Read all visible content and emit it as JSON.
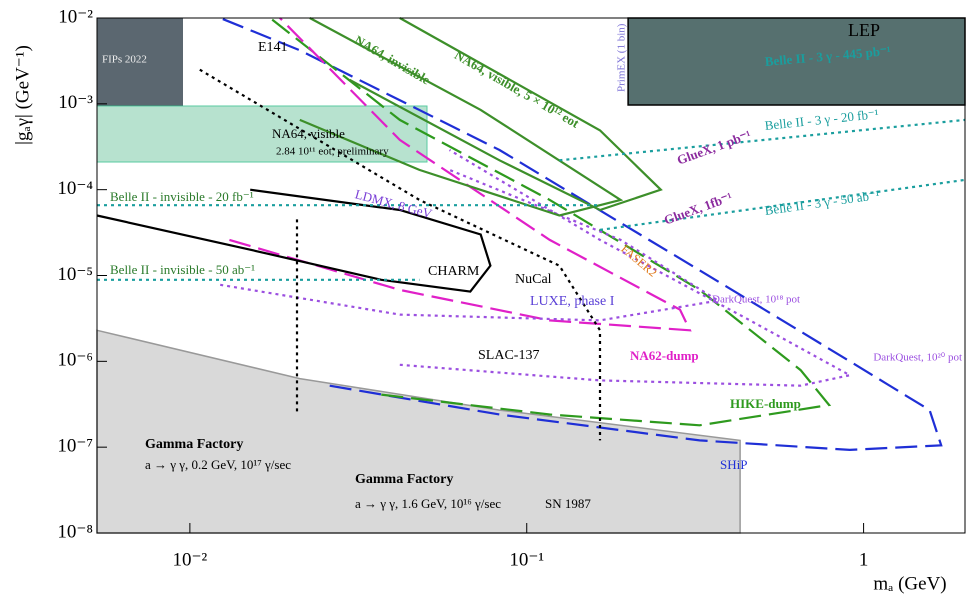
{
  "chart_data": {
    "type": "line",
    "x_label": "mₐ (GeV)",
    "y_label": "|gₐγ| (GeV⁻¹)",
    "x_log": true,
    "y_log": true,
    "grid": false,
    "xlim": [
      0.0053,
      2.0
    ],
    "ylim": [
      1e-08,
      0.01
    ],
    "xticks": [
      {
        "value": 0.01,
        "label": "10⁻²"
      },
      {
        "value": 0.1,
        "label": "10⁻¹"
      },
      1
    ],
    "yticks": [
      {
        "value": 1e-08,
        "label": "10⁻⁸"
      },
      {
        "value": 1e-07,
        "label": "10⁻⁷"
      },
      {
        "value": 1e-06,
        "label": "10⁻⁶"
      },
      {
        "value": 1e-05,
        "label": "10⁻⁵"
      },
      {
        "value": 0.0001,
        "label": "10⁻⁴"
      },
      {
        "value": 0.001,
        "label": "10⁻³"
      },
      {
        "value": 0.01,
        "label": "10⁻²"
      }
    ],
    "series": [
      {
        "name": "SN 1987",
        "color": "#d9d9d9",
        "dash": "solid",
        "fill": "bottom",
        "x": [
          0.0053,
          0.0212,
          0.083,
          0.43
        ],
        "values": [
          2.3e-06,
          6.3e-07,
          2.7e-07,
          1.2e-07
        ]
      },
      {
        "name": "SHiP",
        "color": "#1f2fd6",
        "dash": "long",
        "x": [
          0.026,
          0.083,
          0.326,
          0.91,
          1.7,
          1.57,
          0.91,
          0.326,
          0.083,
          0.0212,
          0.0123
        ],
        "values": [
          5.2e-07,
          2.4e-07,
          1.2e-07,
          9.3e-08,
          1.05e-07,
          2.7e-07,
          1e-06,
          1.15e-05,
          0.00029,
          0.0042,
          0.01
        ]
      },
      {
        "name": "HIKE-dump",
        "color": "#2e9a1e",
        "dash": "long",
        "x": [
          0.037,
          0.117,
          0.326,
          0.79,
          0.65,
          0.326,
          0.117,
          0.042,
          0.0173
        ],
        "values": [
          4.1e-07,
          2.4e-07,
          1.8e-07,
          3.1e-07,
          7.9e-07,
          6.8e-06,
          7.6e-05,
          0.00065,
          0.01
        ]
      },
      {
        "name": "NA62-dump",
        "color": "#e020c8",
        "dash": "long",
        "x": [
          0.0131,
          0.042,
          0.117,
          0.305,
          0.285,
          0.117,
          0.042,
          0.0185
        ],
        "values": [
          2.6e-05,
          6.8e-06,
          3e-06,
          2.3e-06,
          4e-06,
          2.6e-05,
          0.00038,
          0.01
        ]
      },
      {
        "name": "DarkQuest, 10²⁰ pot",
        "color": "#9b4fe0",
        "dash": "dot",
        "x": [
          0.042,
          0.165,
          0.65,
          0.91,
          0.46,
          0.165,
          0.059
        ],
        "values": [
          9.1e-07,
          6e-07,
          5.2e-07,
          6.9e-07,
          3e-06,
          2.6e-05,
          0.00029
        ]
      },
      {
        "name": "DarkQuest, 10¹⁸ pot",
        "color": "#9b4fe0",
        "dash": "dot",
        "x": [
          0.0123,
          0.042,
          0.165,
          0.37,
          0.19,
          0.059
        ],
        "values": [
          7.8e-06,
          3.5e-06,
          3e-06,
          5.1e-06,
          2.6e-05,
          0.00017
        ]
      },
      {
        "name": "CHARM",
        "color": "#000000",
        "dash": "solid",
        "x": [
          0.0053,
          0.0151,
          0.037,
          0.068,
          0.078,
          0.073,
          0.042,
          0.0151
        ],
        "values": [
          5e-05,
          2e-05,
          8.9e-06,
          6.5e-06,
          1.3e-05,
          3e-05,
          5.8e-05,
          0.0001
        ]
      },
      {
        "name": "NuCal",
        "color": "#000000",
        "dash": "dot",
        "x": [
          0.0107,
          0.048,
          0.125,
          0.165,
          0.165
        ],
        "values": [
          0.0025,
          7.6e-05,
          1.3e-05,
          2.3e-06,
          1.2e-07
        ]
      },
      {
        "name": "SLAC-137",
        "color": "#000000",
        "dash": "dot",
        "x": [
          0.0208,
          0.0208
        ],
        "values": [
          4.5e-05,
          2.4e-07
        ]
      },
      {
        "name": "LEP",
        "color": "#56706f",
        "dash": "solid",
        "fill": "top",
        "x": [
          0.2,
          2.0
        ],
        "values": [
          0.00097,
          0.00097
        ]
      },
      {
        "name": "NA64, invisible",
        "color": "#3d8f2a",
        "dash": "solid",
        "x": [
          0.0227,
          0.073,
          0.19,
          0.125,
          0.048,
          0.0212
        ],
        "values": [
          0.01,
          0.00085,
          7.6e-05,
          5e-05,
          0.00017,
          0.00065
        ]
      },
      {
        "name": "NA64, visible, 5 × 10¹² eot",
        "color": "#3d8f2a",
        "dash": "solid",
        "x": [
          0.042,
          0.165,
          0.25,
          0.165,
          0.083,
          0.0298
        ],
        "values": [
          0.01,
          0.00049,
          0.0001,
          5.8e-05,
          0.00022,
          0.0019
        ]
      },
      {
        "name": "Belle II - invisible - 20 fb⁻¹",
        "color": "#1a9e9e",
        "dash": "dot",
        "x": [
          0.0053,
          0.165
        ],
        "values": [
          6.6e-05,
          6.6e-05
        ]
      },
      {
        "name": "Belle II - invisible - 50 ab⁻¹",
        "color": "#1a9e9e",
        "dash": "dot",
        "x": [
          0.0053,
          0.048
        ],
        "values": [
          8.9e-06,
          8.9e-06
        ]
      },
      {
        "name": "Belle II - 3 γ - 50 ab⁻¹",
        "color": "#1a9e9e",
        "dash": "dot",
        "x": [
          0.165,
          2.0
        ],
        "values": [
          3.4e-05,
          0.00013
        ]
      },
      {
        "name": "Belle II - 3 γ - 20 fb⁻¹",
        "color": "#1a9e9e",
        "dash": "dot",
        "x": [
          0.125,
          2.0
        ],
        "values": [
          0.00022,
          0.00065
        ]
      }
    ],
    "annotations": [
      "FIPs 2022",
      "E141",
      "NA64, visible",
      "2.84 10¹¹ eot, preliminary",
      "LDMX, 8 GeV",
      "LUXE, phase I",
      "GlueX, 1 pb⁻¹",
      "GlueX, 1fb⁻¹",
      "PrimEX (1 bin)",
      "Belle II - 3 γ - 445 pb⁻¹",
      "FASER2",
      "Gamma Factory",
      "a → γ γ, 0.2 GeV, 10¹⁷ γ/sec",
      "Gamma Factory",
      "a → γ γ, 1.6 GeV, 10¹⁶ γ/sec"
    ]
  }
}
